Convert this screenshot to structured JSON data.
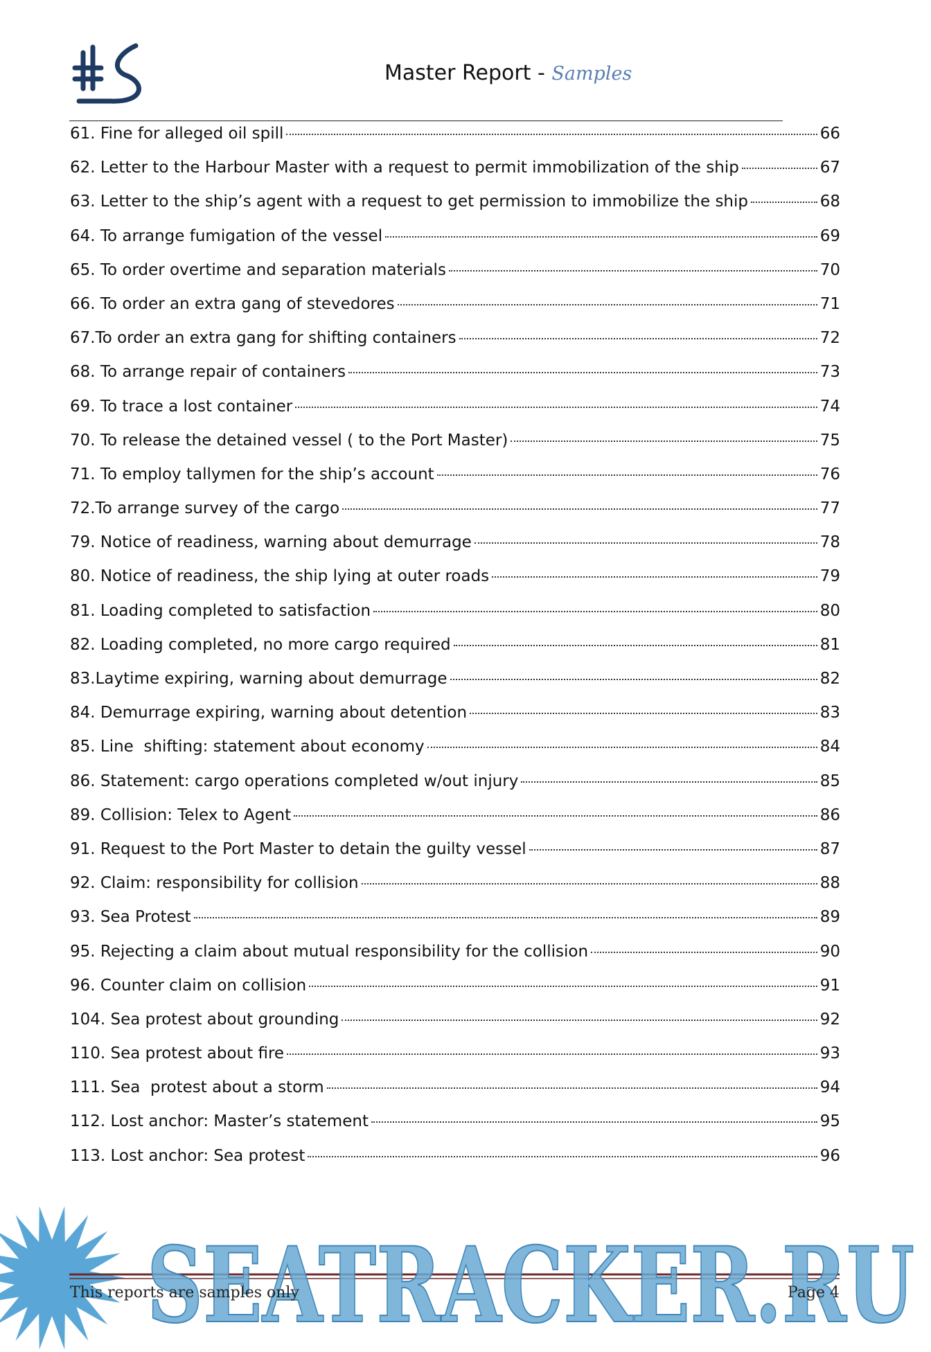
{
  "header": {
    "title": "Master Report",
    "separator": "-",
    "subtitle": "Samples"
  },
  "toc": [
    {
      "label": "61. Fine for alleged oil spill",
      "page": 66
    },
    {
      "label": "62. Letter to the Harbour Master with a request to permit immobilization of the ship",
      "page": 67
    },
    {
      "label": "63. Letter to the ship’s agent with a request to get permission to immobilize the ship",
      "page": 68
    },
    {
      "label": "64. To arrange fumigation of the vessel",
      "page": 69
    },
    {
      "label": "65. To order overtime and separation materials",
      "page": 70
    },
    {
      "label": "66. To order an extra gang of stevedores",
      "page": 71
    },
    {
      "label": "67.To order an extra gang for shifting containers",
      "page": 72
    },
    {
      "label": "68. To arrange repair of containers",
      "page": 73
    },
    {
      "label": "69. To trace a lost container",
      "page": 74
    },
    {
      "label": "70. To release the detained vessel ( to the Port Master)",
      "page": 75
    },
    {
      "label": "71. To employ tallymen for the ship’s account",
      "page": 76
    },
    {
      "label": "72.To arrange survey of the cargo",
      "page": 77
    },
    {
      "label": "79. Notice of readiness, warning about demurrage",
      "page": 78
    },
    {
      "label": "80. Notice of readiness, the ship lying at outer roads",
      "page": 79
    },
    {
      "label": "81. Loading completed to satisfaction",
      "page": 80
    },
    {
      "label": "82. Loading completed, no more cargo required",
      "page": 81
    },
    {
      "label": "83.Laytime expiring, warning about demurrage",
      "page": 82
    },
    {
      "label": "84. Demurrage expiring, warning about detention",
      "page": 83
    },
    {
      "label": "85. Line  shifting: statement about economy",
      "page": 84
    },
    {
      "label": "86. Statement: cargo operations completed w/out injury",
      "page": 85
    },
    {
      "label": "89. Collision: Telex to Agent",
      "page": 86
    },
    {
      "label": "91. Request to the Port Master to detain the guilty vessel",
      "page": 87
    },
    {
      "label": "92. Claim: responsibility for collision",
      "page": 88
    },
    {
      "label": "93. Sea Protest",
      "page": 89
    },
    {
      "label": "95. Rejecting a claim about mutual responsibility for the collision",
      "page": 90
    },
    {
      "label": "96. Counter claim on collision",
      "page": 91
    },
    {
      "label": "104. Sea protest about grounding",
      "page": 92
    },
    {
      "label": "110. Sea protest about fire",
      "page": 93
    },
    {
      "label": "111. Sea  protest about a storm",
      "page": 94
    },
    {
      "label": "112. Lost anchor: Master’s statement",
      "page": 95
    },
    {
      "label": "113. Lost anchor: Sea protest",
      "page": 96
    }
  ],
  "footer": {
    "left": "This reports are samples only",
    "right": "Page 4"
  },
  "watermark": "SEATRACKER.RU"
}
